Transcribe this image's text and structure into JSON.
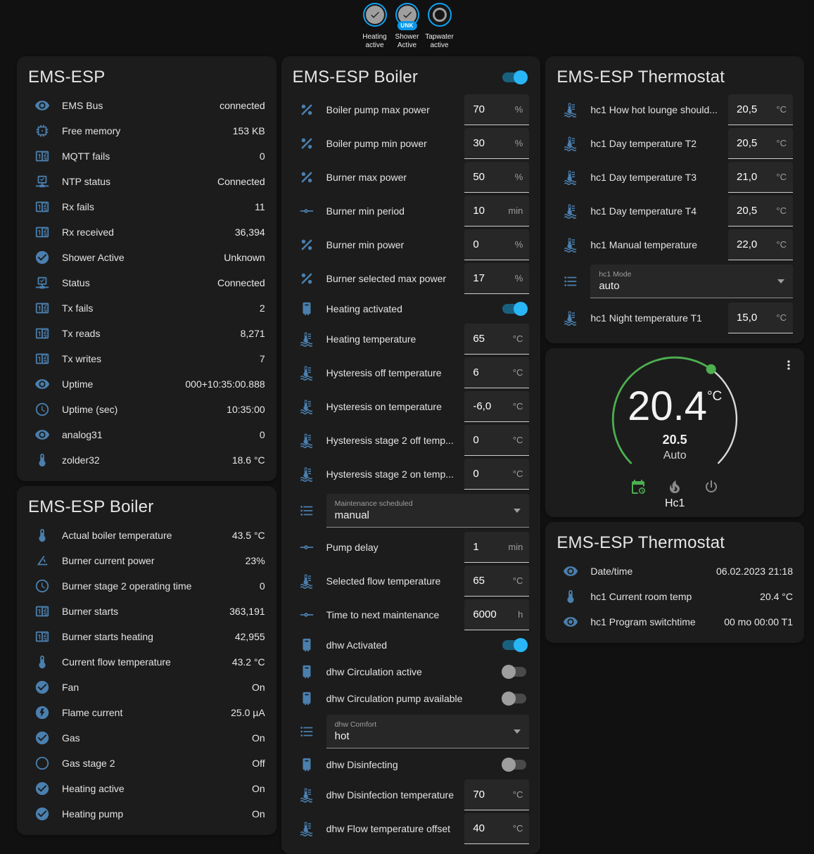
{
  "colors": {
    "page_bg": "#111111",
    "card_bg": "#1c1c1c",
    "accent_blue": "#29b6f6",
    "icon_blue": "#4a7fae",
    "ring_blue": "#0ea2f0",
    "green": "#4caf50",
    "text": "#e1e1e1",
    "secondary_text": "#9e9e9e"
  },
  "header": {
    "badges": [
      {
        "label": "Heating active",
        "state": "check",
        "sub": ""
      },
      {
        "label": "Shower Active",
        "state": "check",
        "sub": "UNK"
      },
      {
        "label": "Tapwater active",
        "state": "blank",
        "sub": ""
      }
    ]
  },
  "cards": {
    "system": {
      "title": "EMS-ESP",
      "rows": [
        {
          "type": "sensor",
          "icon": "eye",
          "label": "EMS Bus",
          "value": "connected"
        },
        {
          "type": "sensor",
          "icon": "chip",
          "label": "Free memory",
          "value": "153 KB"
        },
        {
          "type": "sensor",
          "icon": "counter",
          "label": "MQTT fails",
          "value": "0"
        },
        {
          "type": "sensor",
          "icon": "network",
          "label": "NTP status",
          "value": "Connected"
        },
        {
          "type": "sensor",
          "icon": "counter",
          "label": "Rx fails",
          "value": "11"
        },
        {
          "type": "sensor",
          "icon": "counter",
          "label": "Rx received",
          "value": "36,394"
        },
        {
          "type": "sensor",
          "icon": "check-circle",
          "label": "Shower Active",
          "value": "Unknown"
        },
        {
          "type": "sensor",
          "icon": "network",
          "label": "Status",
          "value": "Connected"
        },
        {
          "type": "sensor",
          "icon": "counter",
          "label": "Tx fails",
          "value": "2"
        },
        {
          "type": "sensor",
          "icon": "counter",
          "label": "Tx reads",
          "value": "8,271"
        },
        {
          "type": "sensor",
          "icon": "counter",
          "label": "Tx writes",
          "value": "7"
        },
        {
          "type": "sensor",
          "icon": "eye",
          "label": "Uptime",
          "value": "000+10:35:00.888"
        },
        {
          "type": "sensor",
          "icon": "clock",
          "label": "Uptime (sec)",
          "value": "10:35:00"
        },
        {
          "type": "sensor",
          "icon": "eye",
          "label": "analog31",
          "value": "0"
        },
        {
          "type": "sensor",
          "icon": "thermometer",
          "label": "zolder32",
          "value": "18.6 °C"
        }
      ]
    },
    "boiler_sensors": {
      "title": "EMS-ESP Boiler",
      "rows": [
        {
          "type": "sensor",
          "icon": "thermometer",
          "label": "Actual boiler temperature",
          "value": "43.5 °C"
        },
        {
          "type": "sensor",
          "icon": "angle",
          "label": "Burner current power",
          "value": "23%"
        },
        {
          "type": "sensor",
          "icon": "clock",
          "label": "Burner stage 2 operating time",
          "value": "0"
        },
        {
          "type": "sensor",
          "icon": "counter",
          "label": "Burner starts",
          "value": "363,191"
        },
        {
          "type": "sensor",
          "icon": "counter",
          "label": "Burner starts heating",
          "value": "42,955"
        },
        {
          "type": "sensor",
          "icon": "thermometer",
          "label": "Current flow temperature",
          "value": "43.2 °C"
        },
        {
          "type": "sensor",
          "icon": "check-circle",
          "label": "Fan",
          "value": "On"
        },
        {
          "type": "sensor",
          "icon": "flash-circle",
          "label": "Flame current",
          "value": "25.0 µA"
        },
        {
          "type": "sensor",
          "icon": "check-circle",
          "label": "Gas",
          "value": "On"
        },
        {
          "type": "sensor",
          "icon": "circle-outline",
          "label": "Gas stage 2",
          "value": "Off"
        },
        {
          "type": "sensor",
          "icon": "check-circle",
          "label": "Heating active",
          "value": "On"
        },
        {
          "type": "sensor",
          "icon": "check-circle",
          "label": "Heating pump",
          "value": "On"
        }
      ]
    },
    "boiler_controls": {
      "title": "EMS-ESP Boiler",
      "header_toggle_on": true,
      "rows": [
        {
          "type": "number",
          "icon": "percent",
          "label": "Boiler pump max power",
          "value": "70",
          "unit": "%"
        },
        {
          "type": "number",
          "icon": "percent",
          "label": "Boiler pump min power",
          "value": "30",
          "unit": "%"
        },
        {
          "type": "number",
          "icon": "percent",
          "label": "Burner max power",
          "value": "50",
          "unit": "%"
        },
        {
          "type": "number",
          "icon": "slider",
          "label": "Burner min period",
          "value": "10",
          "unit": "min"
        },
        {
          "type": "number",
          "icon": "percent",
          "label": "Burner min power",
          "value": "0",
          "unit": "%"
        },
        {
          "type": "number",
          "icon": "percent",
          "label": "Burner selected max power",
          "value": "17",
          "unit": "%"
        },
        {
          "type": "toggle",
          "icon": "boiler",
          "label": "Heating activated",
          "on": true
        },
        {
          "type": "number",
          "icon": "thermo-waves",
          "label": "Heating temperature",
          "value": "65",
          "unit": "°C"
        },
        {
          "type": "number",
          "icon": "thermo-waves",
          "label": "Hysteresis off temperature",
          "value": "6",
          "unit": "°C"
        },
        {
          "type": "number",
          "icon": "thermo-waves",
          "label": "Hysteresis on temperature",
          "value": "-6,0",
          "unit": "°C"
        },
        {
          "type": "number",
          "icon": "thermo-waves",
          "label": "Hysteresis stage 2 off temp...",
          "value": "0",
          "unit": "°C"
        },
        {
          "type": "number",
          "icon": "thermo-waves",
          "label": "Hysteresis stage 2 on temp...",
          "value": "0",
          "unit": "°C"
        },
        {
          "type": "select",
          "icon": "list",
          "caption": "Maintenance scheduled",
          "value": "manual"
        },
        {
          "type": "number",
          "icon": "slider",
          "label": "Pump delay",
          "value": "1",
          "unit": "min"
        },
        {
          "type": "number",
          "icon": "thermo-waves",
          "label": "Selected flow temperature",
          "value": "65",
          "unit": "°C"
        },
        {
          "type": "number",
          "icon": "slider",
          "label": "Time to next maintenance",
          "value": "6000",
          "unit": "h"
        },
        {
          "type": "toggle",
          "icon": "boiler",
          "label": "dhw Activated",
          "on": true
        },
        {
          "type": "toggle",
          "icon": "boiler",
          "label": "dhw Circulation active",
          "on": false
        },
        {
          "type": "toggle",
          "icon": "boiler",
          "label": "dhw Circulation pump available",
          "on": false
        },
        {
          "type": "select",
          "icon": "list",
          "caption": "dhw Comfort",
          "value": "hot"
        },
        {
          "type": "toggle",
          "icon": "boiler",
          "label": "dhw Disinfecting",
          "on": false
        },
        {
          "type": "number",
          "icon": "thermo-waves",
          "label": "dhw Disinfection temperature",
          "value": "70",
          "unit": "°C"
        },
        {
          "type": "number",
          "icon": "thermo-waves",
          "label": "dhw Flow temperature offset",
          "value": "40",
          "unit": "°C"
        }
      ]
    },
    "thermostat_controls": {
      "title": "EMS-ESP Thermostat",
      "rows": [
        {
          "type": "number",
          "icon": "thermo-waves",
          "label": "hc1 How hot lounge should...",
          "value": "20,5",
          "unit": "°C"
        },
        {
          "type": "number",
          "icon": "thermo-waves",
          "label": "hc1 Day temperature T2",
          "value": "20,5",
          "unit": "°C"
        },
        {
          "type": "number",
          "icon": "thermo-waves",
          "label": "hc1 Day temperature T3",
          "value": "21,0",
          "unit": "°C"
        },
        {
          "type": "number",
          "icon": "thermo-waves",
          "label": "hc1 Day temperature T4",
          "value": "20,5",
          "unit": "°C"
        },
        {
          "type": "number",
          "icon": "thermo-waves",
          "label": "hc1 Manual temperature",
          "value": "22,0",
          "unit": "°C"
        },
        {
          "type": "select",
          "icon": "list",
          "caption": "hc1 Mode",
          "value": "auto"
        },
        {
          "type": "number",
          "icon": "thermo-waves",
          "label": "hc1 Night temperature T1",
          "value": "15,0",
          "unit": "°C"
        }
      ]
    },
    "thermostat_gauge": {
      "current_temp": "20.4",
      "temp_unit": "°C",
      "target_temp": "20.5",
      "mode_label": "Auto",
      "entity_name": "Hc1",
      "mode_icons": [
        "calendar-clock",
        "fire",
        "power"
      ]
    },
    "thermostat_sensors": {
      "title": "EMS-ESP Thermostat",
      "rows": [
        {
          "type": "sensor",
          "icon": "eye",
          "label": "Date/time",
          "value": "06.02.2023 21:18"
        },
        {
          "type": "sensor",
          "icon": "thermometer",
          "label": "hc1 Current room temp",
          "value": "20.4 °C"
        },
        {
          "type": "sensor",
          "icon": "eye",
          "label": "hc1 Program switchtime",
          "value": "00 mo 00:00 T1"
        }
      ]
    }
  }
}
